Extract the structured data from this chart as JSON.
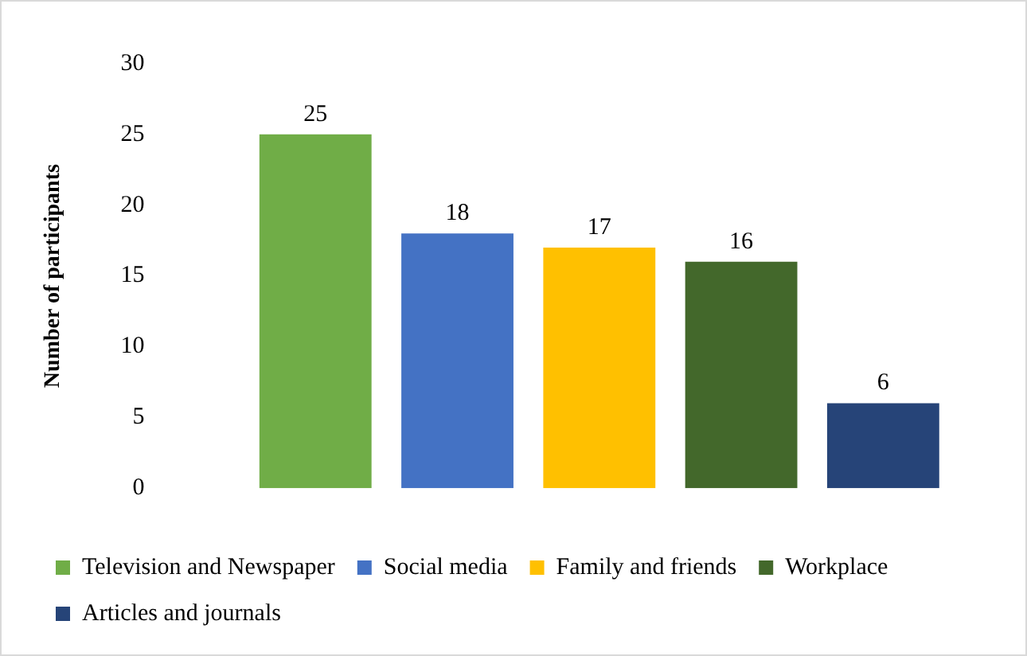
{
  "chart_data": {
    "type": "bar",
    "ylabel": "Number of participants",
    "categories": [
      null
    ],
    "series": [
      {
        "name": "Television and Newspaper",
        "color": "#70ad47",
        "values": [
          25
        ]
      },
      {
        "name": "Social media",
        "color": "#4472c4",
        "values": [
          18
        ]
      },
      {
        "name": "Family and friends",
        "color": "#ffc000",
        "values": [
          17
        ]
      },
      {
        "name": "Workplace",
        "color": "#43682b",
        "values": [
          16
        ]
      },
      {
        "name": "Articles and journals",
        "color": "#264478",
        "values": [
          6
        ]
      }
    ],
    "ylim": [
      0,
      30
    ],
    "yticks": [
      0,
      5,
      10,
      15,
      20,
      25,
      30
    ],
    "grid": false,
    "legend": "bottom",
    "data_labels": true
  }
}
